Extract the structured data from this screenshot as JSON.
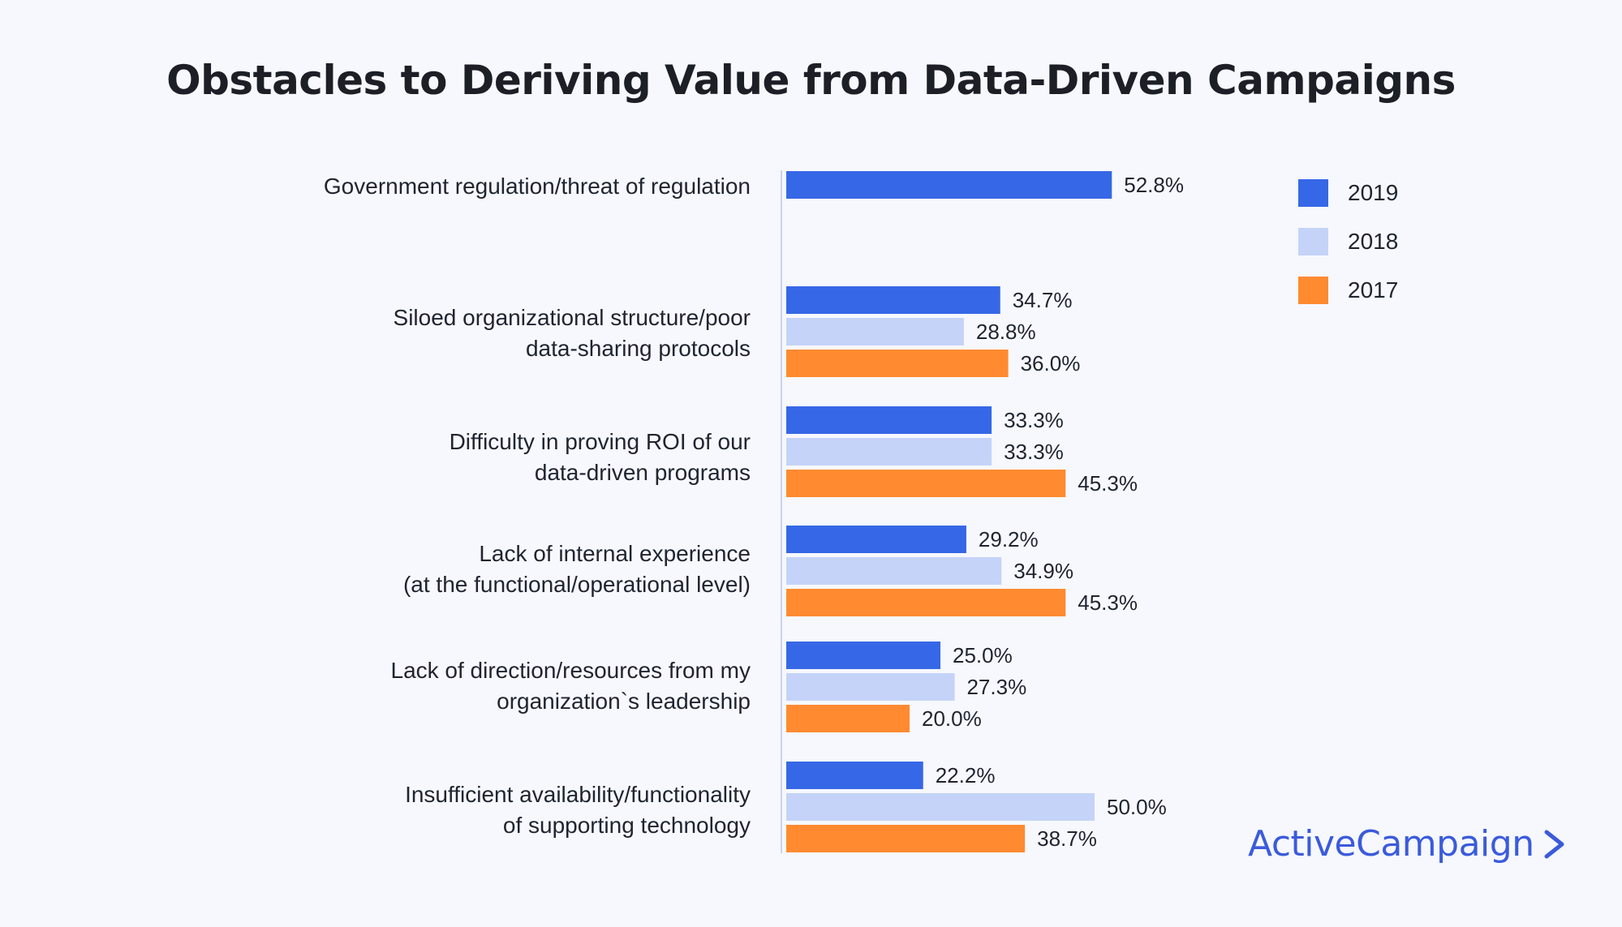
{
  "colors": {
    "2019": "#3667e6",
    "2018": "#c5d3f8",
    "2017": "#ff8a30",
    "axis": "#c8d4ea"
  },
  "chart_data": {
    "type": "bar",
    "orientation": "horizontal",
    "title": "Obstacles to Deriving Value from Data-Driven Campaigns",
    "categories": [
      "Government regulation/threat of regulation",
      "Siloed organizational structure/poor\ndata-sharing protocols",
      "Difficulty in proving ROI of our\ndata-driven programs",
      "Lack of internal experience\n(at the functional/operational level)",
      "Lack of direction/resources from my\norganization`s leadership",
      "Insufficient availability/functionality\nof supporting technology"
    ],
    "series": [
      {
        "name": "2019",
        "values": [
          52.8,
          34.7,
          33.3,
          29.2,
          25.0,
          22.2
        ],
        "labels": [
          "52.8%",
          "34.7%",
          "33.3%",
          "29.2%",
          "25.0%",
          "22.2%"
        ]
      },
      {
        "name": "2018",
        "values": [
          null,
          28.8,
          33.3,
          34.9,
          27.3,
          50.0
        ],
        "labels": [
          null,
          "28.8%",
          "33.3%",
          "34.9%",
          "27.3%",
          "50.0%"
        ]
      },
      {
        "name": "2017",
        "values": [
          null,
          36.0,
          45.3,
          45.3,
          20.0,
          38.7
        ],
        "labels": [
          null,
          "36.0%",
          "45.3%",
          "45.3%",
          "20.0%",
          "38.7%"
        ]
      }
    ],
    "legend_position": "top-right",
    "grid": false
  },
  "legend": [
    {
      "label": "2019",
      "color_key": "2019"
    },
    {
      "label": "2018",
      "color_key": "2018"
    },
    {
      "label": "2017",
      "color_key": "2017"
    }
  ],
  "brand": {
    "name": "ActiveCampaign",
    "icon": "chevron-right-icon"
  }
}
